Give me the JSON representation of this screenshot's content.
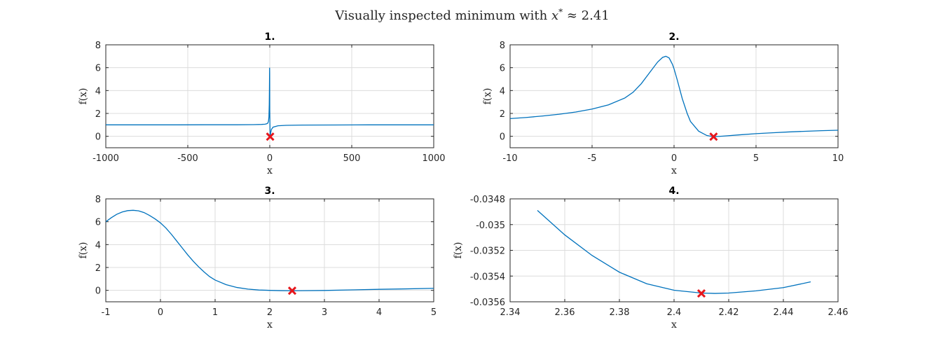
{
  "figure": {
    "suptitle_prefix": "Visually inspected minimum with ",
    "suptitle_var": "x",
    "suptitle_sup": "*",
    "suptitle_rest": " ≈ 2.41"
  },
  "colors": {
    "line": "#0072bd",
    "marker": "#e6161c"
  },
  "chart_data": [
    {
      "type": "line",
      "title": "1.",
      "xlabel": "x",
      "ylabel": "f(x)",
      "xlim": [
        -1000,
        1000
      ],
      "ylim": [
        -1,
        8
      ],
      "xticks": [
        -1000,
        -500,
        0,
        500,
        1000
      ],
      "yticks": [
        0,
        2,
        4,
        6,
        8
      ],
      "xticklabels": [
        "-1000",
        "-500",
        "0",
        "500",
        "1000"
      ],
      "yticklabels": [
        "0",
        "2",
        "4",
        "6",
        "8"
      ],
      "grid": true,
      "x": [
        -1000,
        -800,
        -600,
        -400,
        -200,
        -100,
        -50,
        -30,
        -20,
        -12,
        -8,
        -5,
        -3,
        -2,
        -1,
        -0.5,
        0,
        2,
        3,
        5,
        10,
        20,
        50,
        100,
        200,
        400,
        600,
        800,
        1000
      ],
      "y": [
        1.0,
        1.0,
        1.0,
        1.01,
        1.01,
        1.02,
        1.04,
        1.06,
        1.09,
        1.15,
        1.3,
        1.7,
        2.8,
        4.2,
        6.0,
        5.5,
        2.3,
        0.0,
        -0.03,
        0.25,
        0.6,
        0.8,
        0.92,
        0.96,
        0.98,
        0.99,
        1.0,
        1.0,
        1.0
      ],
      "marker": {
        "x": 2.41,
        "y": -0.0355
      }
    },
    {
      "type": "line",
      "title": "2.",
      "xlabel": "x",
      "ylabel": "f(x)",
      "xlim": [
        -10,
        10
      ],
      "ylim": [
        -1,
        8
      ],
      "xticks": [
        -10,
        -5,
        0,
        5,
        10
      ],
      "yticks": [
        0,
        2,
        4,
        6,
        8
      ],
      "xticklabels": [
        "-10",
        "-5",
        "0",
        "5",
        "10"
      ],
      "yticklabels": [
        "0",
        "2",
        "4",
        "6",
        "8"
      ],
      "grid": true,
      "x": [
        -10,
        -9,
        -8,
        -7,
        -6,
        -5,
        -4,
        -3,
        -2.5,
        -2,
        -1.5,
        -1,
        -0.7,
        -0.5,
        -0.3,
        -0.1,
        0,
        0.2,
        0.5,
        0.8,
        1,
        1.5,
        2,
        2.41,
        3,
        4,
        5,
        6,
        7,
        8,
        9,
        10
      ],
      "y": [
        1.55,
        1.65,
        1.78,
        1.93,
        2.12,
        2.38,
        2.75,
        3.35,
        3.85,
        4.6,
        5.55,
        6.5,
        6.9,
        7.0,
        6.85,
        6.3,
        5.9,
        4.9,
        3.3,
        2.0,
        1.3,
        0.45,
        0.07,
        -0.035,
        0.02,
        0.13,
        0.23,
        0.31,
        0.38,
        0.44,
        0.49,
        0.53
      ],
      "marker": {
        "x": 2.41,
        "y": -0.0355
      }
    },
    {
      "type": "line",
      "title": "3.",
      "xlabel": "x",
      "ylabel": "f(x)",
      "xlim": [
        -1,
        5
      ],
      "ylim": [
        -1,
        8
      ],
      "xticks": [
        -1,
        0,
        1,
        2,
        3,
        4,
        5
      ],
      "yticks": [
        0,
        2,
        4,
        6,
        8
      ],
      "xticklabels": [
        "-1",
        "0",
        "1",
        "2",
        "3",
        "4",
        "5"
      ],
      "yticklabels": [
        "0",
        "2",
        "4",
        "6",
        "8"
      ],
      "grid": true,
      "x": [
        -1,
        -0.9,
        -0.8,
        -0.7,
        -0.6,
        -0.5,
        -0.4,
        -0.3,
        -0.2,
        -0.1,
        0,
        0.1,
        0.2,
        0.3,
        0.4,
        0.5,
        0.6,
        0.7,
        0.8,
        0.9,
        1,
        1.2,
        1.4,
        1.6,
        1.8,
        2,
        2.2,
        2.41,
        2.6,
        3,
        3.5,
        4,
        4.5,
        5
      ],
      "y": [
        6.0,
        6.35,
        6.65,
        6.85,
        6.97,
        7.0,
        6.95,
        6.8,
        6.55,
        6.25,
        5.9,
        5.45,
        4.9,
        4.3,
        3.7,
        3.1,
        2.55,
        2.05,
        1.6,
        1.2,
        0.9,
        0.5,
        0.25,
        0.11,
        0.03,
        0.0,
        -0.025,
        -0.0355,
        -0.03,
        -0.01,
        0.04,
        0.09,
        0.13,
        0.18
      ],
      "marker": {
        "x": 2.41,
        "y": -0.0355
      }
    },
    {
      "type": "line",
      "title": "4.",
      "xlabel": "x",
      "ylabel": "f(x)",
      "xlim": [
        2.34,
        2.46
      ],
      "ylim": [
        -0.0356,
        -0.0348
      ],
      "xticks": [
        2.34,
        2.36,
        2.38,
        2.4,
        2.42,
        2.44,
        2.46
      ],
      "yticks": [
        -0.0356,
        -0.0354,
        -0.0352,
        -0.035,
        -0.0348
      ],
      "xticklabels": [
        "2.34",
        "2.36",
        "2.38",
        "2.4",
        "2.42",
        "2.44",
        "2.46"
      ],
      "yticklabels": [
        "-0.0356",
        "-0.0354",
        "-0.0352",
        "-0.035",
        "-0.0348"
      ],
      "grid": true,
      "x": [
        2.35,
        2.36,
        2.37,
        2.38,
        2.39,
        2.4,
        2.41,
        2.415,
        2.42,
        2.43,
        2.44,
        2.45
      ],
      "y": [
        -0.03489,
        -0.03508,
        -0.03524,
        -0.03537,
        -0.03546,
        -0.03551,
        -0.035532,
        -0.035535,
        -0.035532,
        -0.035515,
        -0.03549,
        -0.035445
      ],
      "marker": {
        "x": 2.41,
        "y": -0.035535
      }
    }
  ]
}
